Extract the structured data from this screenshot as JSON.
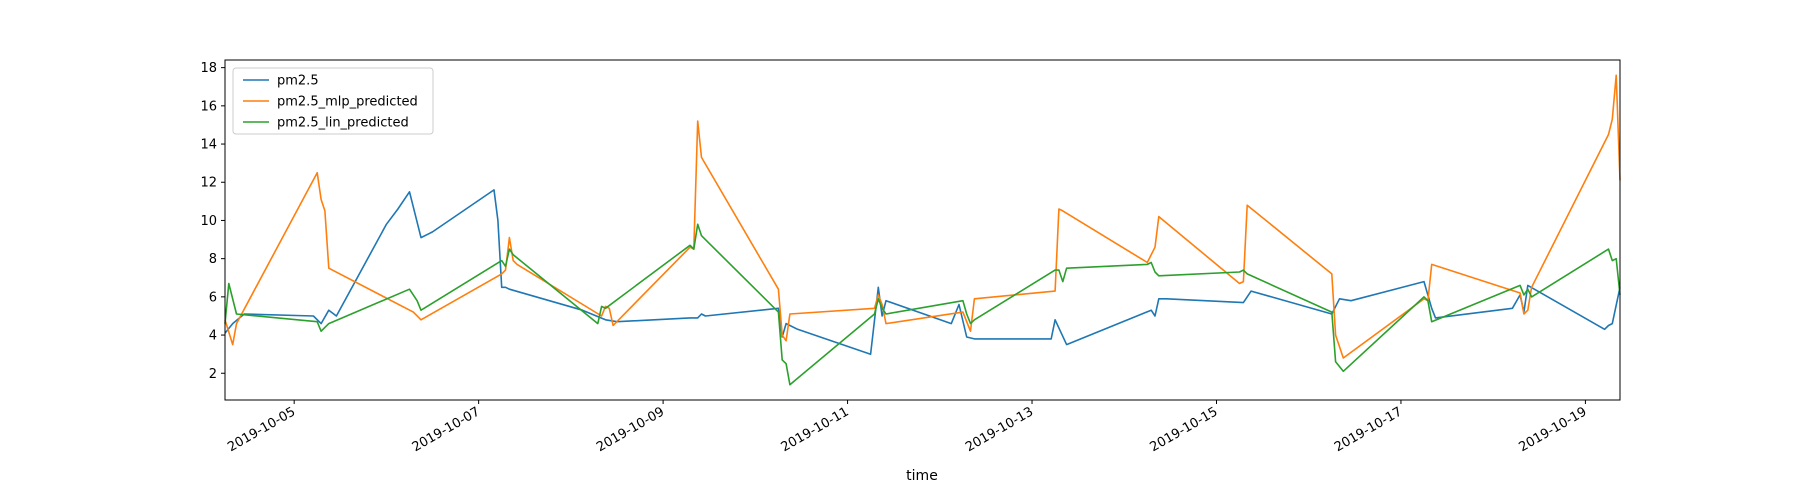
{
  "chart_data": {
    "type": "line",
    "xlabel": "time",
    "ylabel": "",
    "x_range": [
      "2019-10-04T06:00",
      "2019-10-19T09:00"
    ],
    "ylim": [
      0.6,
      18.4
    ],
    "yticks": [
      2,
      4,
      6,
      8,
      10,
      12,
      14,
      16,
      18
    ],
    "xticks": [
      "2019-10-05",
      "2019-10-07",
      "2019-10-09",
      "2019-10-11",
      "2019-10-13",
      "2019-10-15",
      "2019-10-17",
      "2019-10-19"
    ],
    "grid": false,
    "legend_position": "top-left",
    "series": [
      {
        "name": "pm2.5",
        "color": "#1f77b4",
        "x": [
          "2019-10-04T06:00",
          "2019-10-04T08:00",
          "2019-10-04T11:00",
          "2019-10-05T05:00",
          "2019-10-05T07:00",
          "2019-10-05T09:00",
          "2019-10-05T11:00",
          "2019-10-06T00:00",
          "2019-10-06T03:00",
          "2019-10-06T06:00",
          "2019-10-06T09:00",
          "2019-10-06T11:00",
          "2019-10-06T12:00",
          "2019-10-07T04:00",
          "2019-10-07T05:00",
          "2019-10-07T06:00",
          "2019-10-07T07:00",
          "2019-10-07T08:00",
          "2019-10-08T03:00",
          "2019-10-08T09:00",
          "2019-10-08T12:00",
          "2019-10-09T07:00",
          "2019-10-09T09:00",
          "2019-10-09T10:00",
          "2019-10-09T11:00",
          "2019-10-10T06:00",
          "2019-10-10T07:00",
          "2019-10-10T08:00",
          "2019-10-10T09:00",
          "2019-10-10T11:00",
          "2019-10-11T06:00",
          "2019-10-11T08:00",
          "2019-10-11T09:00",
          "2019-10-11T10:00",
          "2019-10-12T03:00",
          "2019-10-12T05:00",
          "2019-10-12T07:00",
          "2019-10-12T09:00",
          "2019-10-12T10:00",
          "2019-10-12T11:00",
          "2019-10-13T05:00",
          "2019-10-13T06:00",
          "2019-10-13T09:00",
          "2019-10-14T07:00",
          "2019-10-14T08:00",
          "2019-10-14T09:00",
          "2019-10-14T11:00",
          "2019-10-15T07:00",
          "2019-10-15T09:00",
          "2019-10-16T06:00",
          "2019-10-16T08:00",
          "2019-10-16T11:00",
          "2019-10-17T06:00",
          "2019-10-17T08:00",
          "2019-10-17T09:00",
          "2019-10-18T05:00",
          "2019-10-18T07:00",
          "2019-10-18T08:00",
          "2019-10-18T09:00",
          "2019-10-19T05:00",
          "2019-10-19T06:00",
          "2019-10-19T07:00",
          "2019-10-19T09:00"
        ],
        "values": [
          4.1,
          4.6,
          5.1,
          5.0,
          4.6,
          5.3,
          5.0,
          9.8,
          10.6,
          11.5,
          9.1,
          9.3,
          9.4,
          11.6,
          10.0,
          6.5,
          6.5,
          6.4,
          5.3,
          4.8,
          4.7,
          4.9,
          4.9,
          5.1,
          5.0,
          5.4,
          3.9,
          4.6,
          4.5,
          4.3,
          3.0,
          6.5,
          5.0,
          5.8,
          4.6,
          5.6,
          3.9,
          3.8,
          3.8,
          3.8,
          3.8,
          4.8,
          3.5,
          5.3,
          5.0,
          5.9,
          5.9,
          5.7,
          6.3,
          5.1,
          5.9,
          5.8,
          6.8,
          5.4,
          4.9,
          5.4,
          6.1,
          5.2,
          6.6,
          4.3,
          4.5,
          4.6,
          6.5
        ]
      },
      {
        "name": "pm2.5_mlp_predicted",
        "color": "#ff7f0e",
        "x": [
          "2019-10-04T06:00",
          "2019-10-04T08:00",
          "2019-10-04T09:00",
          "2019-10-05T06:00",
          "2019-10-05T07:00",
          "2019-10-05T08:00",
          "2019-10-05T09:00",
          "2019-10-06T07:00",
          "2019-10-06T09:00",
          "2019-10-07T06:00",
          "2019-10-07T07:00",
          "2019-10-07T08:00",
          "2019-10-07T09:00",
          "2019-10-07T10:00",
          "2019-10-08T08:00",
          "2019-10-08T09:00",
          "2019-10-08T10:00",
          "2019-10-08T11:00",
          "2019-10-09T07:00",
          "2019-10-09T08:00",
          "2019-10-09T09:00",
          "2019-10-09T10:00",
          "2019-10-10T06:00",
          "2019-10-10T07:00",
          "2019-10-10T08:00",
          "2019-10-10T09:00",
          "2019-10-11T07:00",
          "2019-10-11T08:00",
          "2019-10-11T09:00",
          "2019-10-11T10:00",
          "2019-10-12T06:00",
          "2019-10-12T07:00",
          "2019-10-12T08:00",
          "2019-10-12T09:00",
          "2019-10-13T06:00",
          "2019-10-13T07:00",
          "2019-10-13T08:00",
          "2019-10-14T06:00",
          "2019-10-14T08:00",
          "2019-10-14T09:00",
          "2019-10-15T06:00",
          "2019-10-15T07:00",
          "2019-10-15T08:00",
          "2019-10-16T06:00",
          "2019-10-16T07:00",
          "2019-10-16T09:00",
          "2019-10-17T06:00",
          "2019-10-17T07:00",
          "2019-10-17T08:00",
          "2019-10-18T07:00",
          "2019-10-18T08:00",
          "2019-10-18T09:00",
          "2019-10-18T10:00",
          "2019-10-19T06:00",
          "2019-10-19T07:00",
          "2019-10-19T08:00",
          "2019-10-19T09:00"
        ],
        "values": [
          4.8,
          3.5,
          4.6,
          12.5,
          11.1,
          10.5,
          7.5,
          5.2,
          4.8,
          7.2,
          7.4,
          9.1,
          7.9,
          7.7,
          5.0,
          5.5,
          5.4,
          4.5,
          8.6,
          8.5,
          15.2,
          13.3,
          6.4,
          4.0,
          3.7,
          5.1,
          5.4,
          6.1,
          5.6,
          4.6,
          5.2,
          4.7,
          4.2,
          5.9,
          6.3,
          10.6,
          10.5,
          7.8,
          8.6,
          10.2,
          6.7,
          6.8,
          10.8,
          7.2,
          4.0,
          2.8,
          5.9,
          5.8,
          7.7,
          6.2,
          5.1,
          5.3,
          6.5,
          14.5,
          15.3,
          17.6,
          12.1
        ]
      },
      {
        "name": "pm2.5_lin_predicted",
        "color": "#2ca02c",
        "x": [
          "2019-10-04T06:00",
          "2019-10-04T07:00",
          "2019-10-04T09:00",
          "2019-10-05T06:00",
          "2019-10-05T07:00",
          "2019-10-05T09:00",
          "2019-10-06T06:00",
          "2019-10-06T08:00",
          "2019-10-06T09:00",
          "2019-10-07T06:00",
          "2019-10-07T07:00",
          "2019-10-07T08:00",
          "2019-10-07T09:00",
          "2019-10-08T07:00",
          "2019-10-08T08:00",
          "2019-10-08T09:00",
          "2019-10-09T07:00",
          "2019-10-09T08:00",
          "2019-10-09T09:00",
          "2019-10-09T10:00",
          "2019-10-10T06:00",
          "2019-10-10T07:00",
          "2019-10-10T08:00",
          "2019-10-10T09:00",
          "2019-10-11T07:00",
          "2019-10-11T08:00",
          "2019-10-11T09:00",
          "2019-10-11T10:00",
          "2019-10-12T06:00",
          "2019-10-12T07:00",
          "2019-10-12T08:00",
          "2019-10-12T09:00",
          "2019-10-13T06:00",
          "2019-10-13T07:00",
          "2019-10-13T08:00",
          "2019-10-13T09:00",
          "2019-10-14T06:00",
          "2019-10-14T07:00",
          "2019-10-14T08:00",
          "2019-10-14T09:00",
          "2019-10-15T06:00",
          "2019-10-15T07:00",
          "2019-10-15T08:00",
          "2019-10-16T06:00",
          "2019-10-16T07:00",
          "2019-10-16T09:00",
          "2019-10-17T06:00",
          "2019-10-17T07:00",
          "2019-10-17T08:00",
          "2019-10-18T07:00",
          "2019-10-18T08:00",
          "2019-10-18T09:00",
          "2019-10-18T10:00",
          "2019-10-19T06:00",
          "2019-10-19T07:00",
          "2019-10-19T08:00",
          "2019-10-19T09:00"
        ],
        "values": [
          4.6,
          6.7,
          5.1,
          4.7,
          4.2,
          4.6,
          6.4,
          5.8,
          5.3,
          7.9,
          7.6,
          8.5,
          8.2,
          4.6,
          5.5,
          5.4,
          8.7,
          8.5,
          9.8,
          9.2,
          5.2,
          2.7,
          2.5,
          1.4,
          5.1,
          5.9,
          5.4,
          5.1,
          5.8,
          5.1,
          4.6,
          4.8,
          7.4,
          7.4,
          6.8,
          7.5,
          7.7,
          7.8,
          7.3,
          7.1,
          7.3,
          7.4,
          7.2,
          5.2,
          2.6,
          2.1,
          6.0,
          5.8,
          4.7,
          6.6,
          6.1,
          6.4,
          6.0,
          8.5,
          7.9,
          8.0,
          6.1
        ]
      }
    ]
  }
}
